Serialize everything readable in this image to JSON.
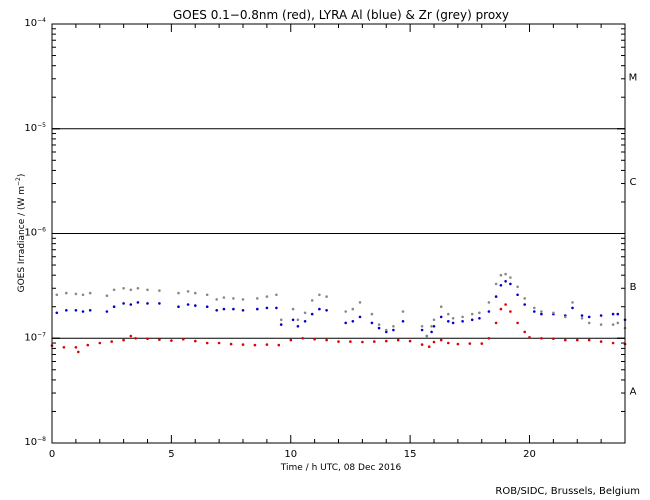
{
  "chart_data": {
    "type": "scatter",
    "title": "GOES 0.1−0.8nm (red), LYRA Al (blue) & Zr (grey) proxy",
    "xlabel": "Time / h UTC, 08 Dec 2016",
    "ylabel_prefix": "GOES Irradiance / (W m",
    "ylabel_sup": "−2",
    "ylabel_suffix": ")",
    "credit": "ROB/SIDC, Brussels, Belgium",
    "xlim": [
      0,
      24
    ],
    "ylog_range": [
      -8,
      -4
    ],
    "x_ticks": [
      0,
      5,
      10,
      15,
      20
    ],
    "x_minor_step": 1,
    "y_tick_base": "10",
    "y_ticks": [
      {
        "exp": -8,
        "label": "−8"
      },
      {
        "exp": -7,
        "label": "−7"
      },
      {
        "exp": -6,
        "label": "−6"
      },
      {
        "exp": -5,
        "label": "−5"
      },
      {
        "exp": -4,
        "label": "−4"
      }
    ],
    "flare_class_lines": [
      -7,
      -6,
      -5
    ],
    "flare_classes": [
      {
        "label": "A",
        "center": -7.5
      },
      {
        "label": "B",
        "center": -6.5
      },
      {
        "label": "C",
        "center": -5.5
      },
      {
        "label": "M",
        "center": -4.5
      }
    ],
    "colors": {
      "goes": "#dd0000",
      "al": "#0000cc",
      "zr": "#888888"
    },
    "series": [
      {
        "key": "goes",
        "x": [
          0.0,
          0.5,
          1.0,
          1.1,
          1.5,
          2.0,
          2.5,
          3.0,
          3.3,
          3.5,
          4.0,
          4.5,
          5.0,
          5.5,
          6.0,
          6.5,
          7.0,
          7.5,
          8.0,
          8.5,
          9.0,
          9.5,
          10.0,
          10.5,
          11.0,
          11.5,
          12.0,
          12.5,
          13.0,
          13.5,
          14.0,
          14.5,
          15.0,
          15.5,
          15.8,
          16.0,
          16.3,
          16.6,
          17.0,
          17.5,
          18.0,
          18.3,
          18.6,
          18.8,
          19.0,
          19.2,
          19.5,
          19.8,
          20.0,
          20.5,
          21.0,
          21.5,
          22.0,
          22.5,
          23.0,
          23.5,
          24.0
        ],
        "y": [
          8.5e-08,
          8.2e-08,
          8.2e-08,
          7.4e-08,
          8.6e-08,
          9e-08,
          9.3e-08,
          9.6e-08,
          1.05e-07,
          1e-07,
          9.9e-08,
          9.7e-08,
          9.5e-08,
          9.8e-08,
          9.4e-08,
          9e-08,
          9e-08,
          8.8e-08,
          8.7e-08,
          8.6e-08,
          8.7e-08,
          8.6e-08,
          9.6e-08,
          1e-07,
          9.8e-08,
          9.6e-08,
          9.3e-08,
          9.3e-08,
          9.2e-08,
          9.3e-08,
          9.4e-08,
          9.6e-08,
          9.4e-08,
          8.7e-08,
          8.3e-08,
          9.2e-08,
          9.6e-08,
          9e-08,
          8.8e-08,
          8.9e-08,
          8.9e-08,
          1e-07,
          1.4e-07,
          1.9e-07,
          2.1e-07,
          1.8e-07,
          1.4e-07,
          1.15e-07,
          1.02e-07,
          1e-07,
          9.9e-08,
          9.6e-08,
          9.6e-08,
          9.6e-08,
          9.3e-08,
          9e-08,
          8.8e-08
        ]
      },
      {
        "key": "al",
        "x": [
          0.2,
          0.6,
          1.0,
          1.3,
          1.6,
          2.3,
          2.6,
          3.0,
          3.3,
          3.6,
          4.0,
          4.5,
          5.3,
          5.7,
          6.0,
          6.5,
          6.9,
          7.2,
          7.6,
          8.0,
          8.6,
          9.0,
          9.4,
          9.6,
          10.1,
          10.3,
          10.6,
          10.9,
          11.2,
          11.5,
          12.3,
          12.6,
          12.9,
          13.4,
          13.7,
          14.0,
          14.3,
          14.7,
          15.5,
          15.7,
          15.9,
          16.0,
          16.3,
          16.6,
          16.8,
          17.2,
          17.6,
          17.9,
          18.3,
          18.6,
          18.8,
          19.0,
          19.2,
          19.5,
          19.8,
          20.2,
          20.5,
          21.0,
          21.5,
          21.8,
          22.2,
          22.5,
          23.0,
          23.5,
          23.7,
          24.0
        ],
        "y": [
          1.75e-07,
          1.85e-07,
          1.85e-07,
          1.8e-07,
          1.85e-07,
          1.8e-07,
          2e-07,
          2.15e-07,
          2.1e-07,
          2.2e-07,
          2.15e-07,
          2.15e-07,
          2e-07,
          2.1e-07,
          2.05e-07,
          2e-07,
          1.85e-07,
          1.9e-07,
          1.9e-07,
          1.85e-07,
          1.9e-07,
          1.95e-07,
          1.95e-07,
          1.35e-07,
          1.5e-07,
          1.3e-07,
          1.45e-07,
          1.7e-07,
          1.9e-07,
          1.85e-07,
          1.4e-07,
          1.45e-07,
          1.6e-07,
          1.4e-07,
          1.25e-07,
          1.15e-07,
          1.2e-07,
          1.45e-07,
          1.2e-07,
          1.05e-07,
          1.15e-07,
          1.3e-07,
          1.6e-07,
          1.45e-07,
          1.4e-07,
          1.45e-07,
          1.5e-07,
          1.55e-07,
          1.8e-07,
          2.5e-07,
          3.2e-07,
          3.5e-07,
          3.3e-07,
          2.6e-07,
          2.1e-07,
          1.8e-07,
          1.7e-07,
          1.7e-07,
          1.65e-07,
          1.95e-07,
          1.65e-07,
          1.6e-07,
          1.65e-07,
          1.7e-07,
          1.7e-07,
          1.5e-07
        ]
      },
      {
        "key": "zr",
        "x": [
          0.2,
          0.6,
          1.0,
          1.3,
          1.6,
          2.3,
          2.6,
          3.0,
          3.3,
          3.6,
          4.0,
          4.5,
          5.3,
          5.7,
          6.0,
          6.5,
          6.9,
          7.2,
          7.6,
          8.0,
          8.6,
          9.0,
          9.4,
          9.6,
          10.1,
          10.3,
          10.6,
          10.9,
          11.2,
          11.5,
          12.3,
          12.6,
          12.9,
          13.4,
          13.7,
          14.0,
          14.3,
          14.7,
          15.5,
          15.7,
          15.9,
          16.0,
          16.3,
          16.6,
          16.8,
          17.2,
          17.6,
          17.9,
          18.3,
          18.6,
          18.8,
          19.0,
          19.2,
          19.5,
          19.8,
          20.2,
          20.5,
          21.0,
          21.5,
          21.8,
          22.2,
          22.5,
          23.0,
          23.5,
          23.7,
          24.0
        ],
        "y": [
          2.6e-07,
          2.7e-07,
          2.65e-07,
          2.6e-07,
          2.7e-07,
          2.55e-07,
          2.9e-07,
          3e-07,
          2.9e-07,
          3e-07,
          2.9e-07,
          2.85e-07,
          2.7e-07,
          2.8e-07,
          2.7e-07,
          2.6e-07,
          2.35e-07,
          2.45e-07,
          2.4e-07,
          2.35e-07,
          2.4e-07,
          2.5e-07,
          2.6e-07,
          1.5e-07,
          1.9e-07,
          1.5e-07,
          1.75e-07,
          2.3e-07,
          2.6e-07,
          2.5e-07,
          1.8e-07,
          1.9e-07,
          2.2e-07,
          1.7e-07,
          1.35e-07,
          1.2e-07,
          1.3e-07,
          1.8e-07,
          1.3e-07,
          1.05e-07,
          1.3e-07,
          1.5e-07,
          2e-07,
          1.7e-07,
          1.55e-07,
          1.6e-07,
          1.7e-07,
          1.75e-07,
          2.2e-07,
          3.3e-07,
          4e-07,
          4.1e-07,
          3.8e-07,
          3.1e-07,
          2.4e-07,
          1.95e-07,
          1.8e-07,
          1.75e-07,
          1.6e-07,
          2.2e-07,
          1.55e-07,
          1.4e-07,
          1.35e-07,
          1.35e-07,
          1.4e-07,
          1.25e-07
        ]
      }
    ]
  }
}
